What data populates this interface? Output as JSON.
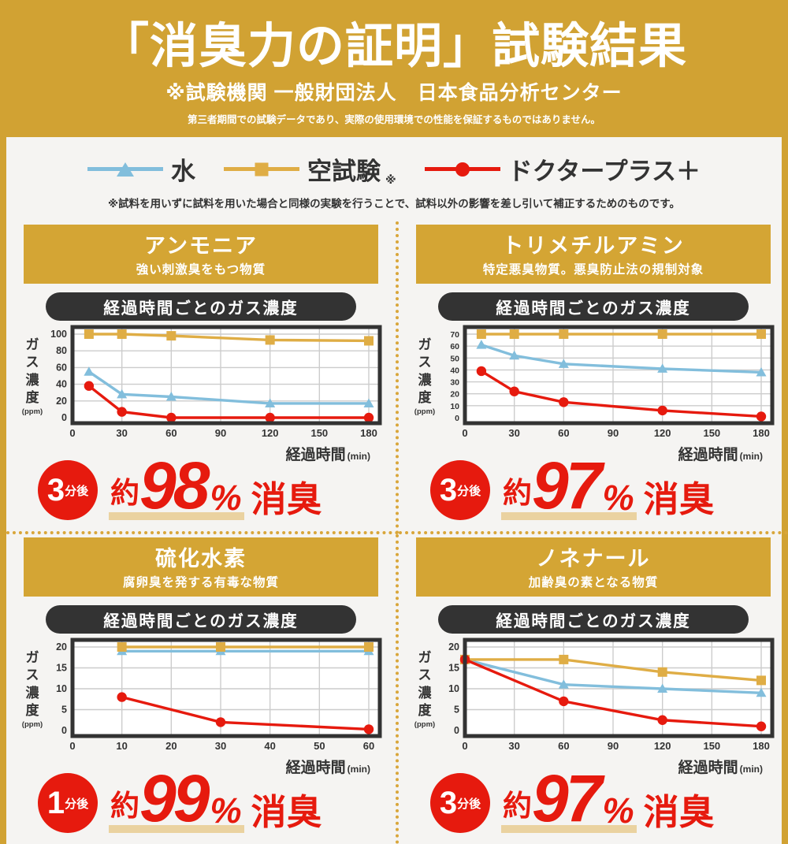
{
  "colors": {
    "background_gold": "#D1A233",
    "section_header_gold": "#D4A534",
    "accent_red": "#E61A0E",
    "water_blue": "#82BEDC",
    "blank_test_gold": "#DFAD45",
    "panel_background": "#F5F4F2",
    "title_bar_dark": "#333333",
    "underline_tan": "#EAD2A0"
  },
  "header": {
    "title": "「消臭力の証明」試験結果",
    "subtitle": "※試験機関 一般財団法人　日本食品分析センター",
    "disclaimer": "第三者期間での試験データであり、実際の使用環境での性能を保証するものではありません。"
  },
  "legend": {
    "items": [
      {
        "label": "水",
        "marker": "triangle",
        "color": "#82BEDC"
      },
      {
        "label": "空試験",
        "ref_mark": "※",
        "marker": "square",
        "color": "#DFAD45"
      },
      {
        "label": "ドクタープラス＋",
        "marker": "circle",
        "color": "#E61A0E"
      }
    ],
    "note": "※試料を用いずに試料を用いた場合と同様の実験を行うことで、試料以外の影響を差し引いて補正するためのものです。"
  },
  "panels": [
    {
      "name": "アンモニア",
      "description": "強い刺激臭をもつ物質",
      "chart_title": "経過時間ごとのガス濃度",
      "result": {
        "time": "3",
        "time_unit": "分後",
        "prefix": "約",
        "value": "98",
        "unit": "%",
        "suffix": "消臭"
      }
    },
    {
      "name": "トリメチルアミン",
      "description": "特定悪臭物質。悪臭防止法の規制対象",
      "chart_title": "経過時間ごとのガス濃度",
      "result": {
        "time": "3",
        "time_unit": "分後",
        "prefix": "約",
        "value": "97",
        "unit": "%",
        "suffix": "消臭"
      }
    },
    {
      "name": "硫化水素",
      "description": "腐卵臭を発する有毒な物質",
      "chart_title": "経過時間ごとのガス濃度",
      "result": {
        "time": "1",
        "time_unit": "分後",
        "prefix": "約",
        "value": "99",
        "unit": "%",
        "suffix": "消臭"
      }
    },
    {
      "name": "ノネナール",
      "description": "加齢臭の素となる物質",
      "chart_title": "経過時間ごとのガス濃度",
      "result": {
        "time": "3",
        "time_unit": "分後",
        "prefix": "約",
        "value": "97",
        "unit": "%",
        "suffix": "消臭"
      }
    }
  ],
  "chart_data": [
    {
      "type": "line",
      "title": "経過時間ごとのガス濃度",
      "xlabel": "経過時間",
      "xunit": "(min)",
      "ylabel": "ガス濃度",
      "yunit": "(ppm)",
      "xticks": [
        0,
        30,
        60,
        90,
        120,
        150,
        180
      ],
      "yticks": [
        0,
        20,
        40,
        60,
        80,
        100
      ],
      "ylim": [
        0,
        100
      ],
      "series": [
        {
          "name": "水",
          "marker": "triangle",
          "color": "#82BEDC",
          "x": [
            10,
            30,
            60,
            120,
            180
          ],
          "y": [
            55,
            28,
            25,
            17,
            17
          ]
        },
        {
          "name": "空試験",
          "marker": "square",
          "color": "#DFAD45",
          "x": [
            10,
            30,
            60,
            120,
            180
          ],
          "y": [
            100,
            100,
            98,
            93,
            92
          ]
        },
        {
          "name": "ドクタープラス＋",
          "marker": "circle",
          "color": "#E61A0E",
          "x": [
            10,
            30,
            60,
            120,
            180
          ],
          "y": [
            38,
            7,
            0,
            0,
            0
          ]
        }
      ]
    },
    {
      "type": "line",
      "title": "経過時間ごとのガス濃度",
      "xlabel": "経過時間",
      "xunit": "(min)",
      "ylabel": "ガス濃度",
      "yunit": "(ppm)",
      "xticks": [
        0,
        30,
        60,
        90,
        120,
        150,
        180
      ],
      "yticks": [
        0,
        10,
        20,
        30,
        40,
        50,
        60,
        70
      ],
      "ylim": [
        0,
        70
      ],
      "series": [
        {
          "name": "水",
          "marker": "triangle",
          "color": "#82BEDC",
          "x": [
            10,
            30,
            60,
            120,
            180
          ],
          "y": [
            61,
            52,
            45,
            41,
            38
          ]
        },
        {
          "name": "空試験",
          "marker": "square",
          "color": "#DFAD45",
          "x": [
            10,
            30,
            60,
            120,
            180
          ],
          "y": [
            70,
            70,
            70,
            70,
            70
          ]
        },
        {
          "name": "ドクタープラス＋",
          "marker": "circle",
          "color": "#E61A0E",
          "x": [
            10,
            30,
            60,
            120,
            180
          ],
          "y": [
            39,
            22,
            13,
            6,
            1
          ]
        }
      ]
    },
    {
      "type": "line",
      "title": "経過時間ごとのガス濃度",
      "xlabel": "経過時間",
      "xunit": "(min)",
      "ylabel": "ガス濃度",
      "yunit": "(ppm)",
      "xticks": [
        0,
        10,
        20,
        30,
        40,
        50,
        60
      ],
      "yticks": [
        0,
        5,
        10,
        15,
        20
      ],
      "ylim": [
        0,
        20
      ],
      "series": [
        {
          "name": "水",
          "marker": "triangle",
          "color": "#82BEDC",
          "x": [
            10,
            30,
            60
          ],
          "y": [
            19,
            19,
            19
          ]
        },
        {
          "name": "空試験",
          "marker": "square",
          "color": "#DFAD45",
          "x": [
            10,
            30,
            60
          ],
          "y": [
            20,
            20,
            20
          ]
        },
        {
          "name": "ドクタープラス＋",
          "marker": "circle",
          "color": "#E61A0E",
          "x": [
            10,
            30,
            60
          ],
          "y": [
            8,
            2,
            0.3
          ]
        }
      ]
    },
    {
      "type": "line",
      "title": "経過時間ごとのガス濃度",
      "xlabel": "経過時間",
      "xunit": "(min)",
      "ylabel": "ガス濃度",
      "yunit": "(ppm)",
      "xticks": [
        0,
        30,
        60,
        90,
        120,
        150,
        180
      ],
      "yticks": [
        0,
        5,
        10,
        15,
        20
      ],
      "ylim": [
        0,
        20
      ],
      "series": [
        {
          "name": "水",
          "marker": "triangle",
          "color": "#82BEDC",
          "x": [
            0,
            60,
            120,
            180
          ],
          "y": [
            17,
            11,
            10,
            9
          ]
        },
        {
          "name": "空試験",
          "marker": "square",
          "color": "#DFAD45",
          "x": [
            0,
            60,
            120,
            180
          ],
          "y": [
            17,
            17,
            14,
            12
          ]
        },
        {
          "name": "ドクタープラス＋",
          "marker": "circle",
          "color": "#E61A0E",
          "x": [
            0,
            60,
            120,
            180
          ],
          "y": [
            17,
            7,
            2.5,
            1
          ]
        }
      ]
    }
  ]
}
